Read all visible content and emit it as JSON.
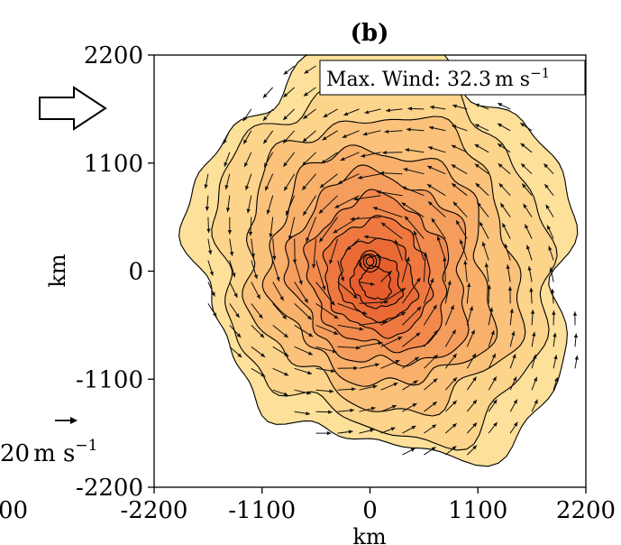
{
  "chart_data": {
    "type": "contour",
    "panel_label": "(b)",
    "xlabel": "km",
    "ylabel": "km",
    "xlim": [
      -2200,
      2200
    ],
    "ylim": [
      -2200,
      2200
    ],
    "xticks": [
      -2200,
      -1100,
      0,
      1100,
      2200
    ],
    "yticks": [
      -2200,
      -1100,
      0,
      1100,
      2200
    ],
    "xtick_labels": [
      "-2200",
      "-1100",
      "0",
      "1100",
      "2200"
    ],
    "ytick_labels": [
      "-2200",
      "-1100",
      "0",
      "1100",
      "2200"
    ],
    "offpage_tick_label": "00",
    "annotation": {
      "prefix": "Max. Wind: ",
      "value": "32.3",
      "unit_main": "m s",
      "unit_exp": "−1"
    },
    "reference_vector": {
      "value": "20",
      "unit_main": "m s",
      "unit_exp": "−1"
    },
    "center": [
      0,
      100
    ],
    "outer_contour_radius_km": [
      1950,
      2100,
      2150,
      2200,
      2050,
      1900,
      1800,
      1700,
      1750,
      1900,
      2200,
      2300
    ],
    "contour_levels": [
      0.88,
      0.72,
      0.58,
      0.47,
      0.37,
      0.28,
      0.2,
      0.13,
      0.08
    ],
    "fill_colors": [
      "#fde09a",
      "#fcd48b",
      "#fac27a",
      "#f8b06b",
      "#f59d5c",
      "#f2894d",
      "#ee7840",
      "#ea6a36",
      "#e65e2e"
    ],
    "colors": {
      "vector": "#111111",
      "contour": "#000000"
    }
  }
}
